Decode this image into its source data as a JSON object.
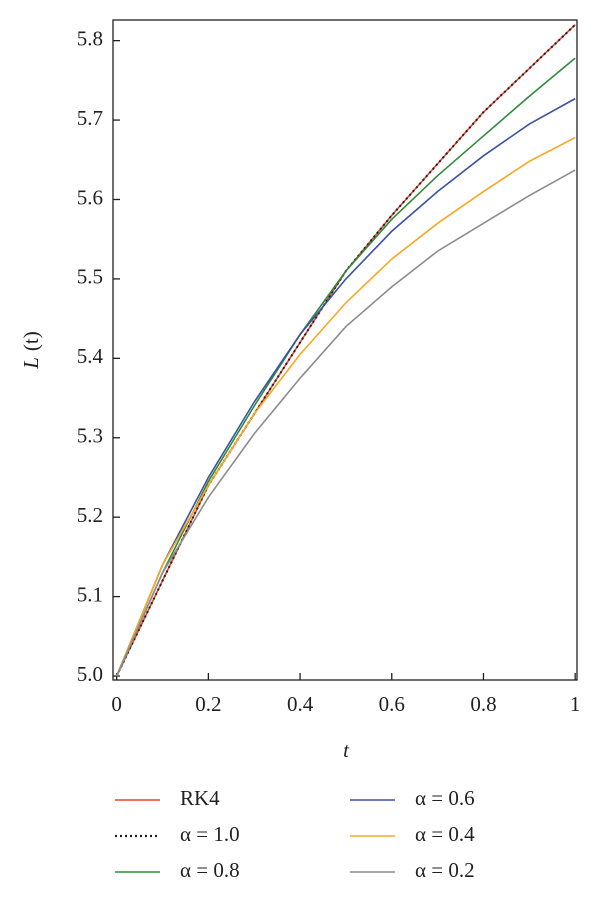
{
  "chart_data": {
    "type": "line",
    "xlabel": "t",
    "ylabel_main": "L",
    "ylabel_arg": "(t)",
    "x": [
      0,
      0.1,
      0.2,
      0.3,
      0.4,
      0.5,
      0.6,
      0.7,
      0.8,
      0.9,
      1.0
    ],
    "series": [
      {
        "name": "RK4",
        "color": "#e8442b",
        "style": "solid",
        "values": [
          5.0,
          5.12,
          5.24,
          5.33,
          5.42,
          5.51,
          5.58,
          5.645,
          5.71,
          5.765,
          5.82
        ]
      },
      {
        "name": "α = 1.0",
        "color": "#231f20",
        "style": "dotted",
        "values": [
          5.0,
          5.12,
          5.24,
          5.33,
          5.42,
          5.51,
          5.58,
          5.645,
          5.71,
          5.765,
          5.82
        ]
      },
      {
        "name": "α = 0.8",
        "color": "#2e8b3a",
        "style": "solid",
        "values": [
          5.0,
          5.13,
          5.245,
          5.34,
          5.43,
          5.51,
          5.575,
          5.63,
          5.68,
          5.73,
          5.778
        ]
      },
      {
        "name": "α = 0.6",
        "color": "#3a53a4",
        "style": "solid",
        "values": [
          5.0,
          5.14,
          5.25,
          5.345,
          5.43,
          5.5,
          5.56,
          5.61,
          5.655,
          5.695,
          5.727
        ]
      },
      {
        "name": "α = 0.4",
        "color": "#f7a823",
        "style": "solid",
        "values": [
          5.0,
          5.14,
          5.24,
          5.33,
          5.405,
          5.47,
          5.525,
          5.57,
          5.61,
          5.648,
          5.678
        ]
      },
      {
        "name": "α = 0.2",
        "color": "#8c8c8c",
        "style": "solid",
        "values": [
          5.0,
          5.13,
          5.225,
          5.305,
          5.375,
          5.44,
          5.49,
          5.535,
          5.57,
          5.605,
          5.637
        ]
      }
    ],
    "xlim": [
      -0.008,
      1.004
    ],
    "ylim": [
      4.995,
      5.826
    ],
    "xticks": [
      0,
      0.2,
      0.4,
      0.6,
      0.8,
      1
    ],
    "yticks": [
      {
        "value": 5,
        "label": "5.0"
      },
      5.1,
      5.2,
      5.3,
      5.4,
      5.5,
      5.6,
      5.7,
      5.8
    ],
    "legend": "bottom"
  }
}
